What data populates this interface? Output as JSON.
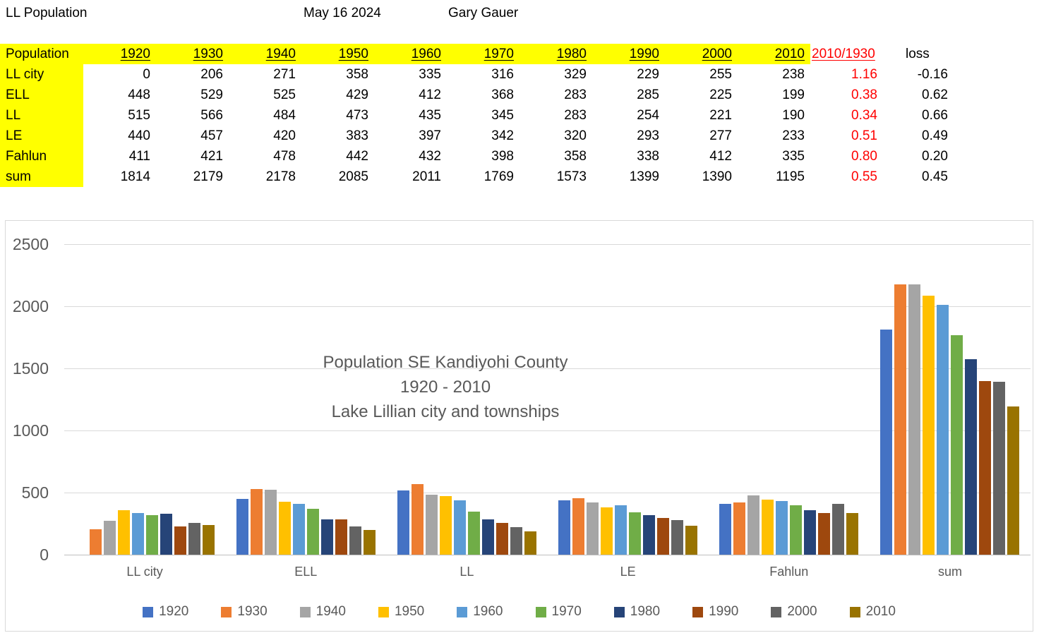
{
  "header": {
    "title": "LL Population",
    "date": "May 16 2024",
    "author": "Gary Gauer"
  },
  "table": {
    "corner_label": "Population",
    "year_headers": [
      "1920",
      "1930",
      "1940",
      "1950",
      "1960",
      "1970",
      "1980",
      "1990",
      "2000",
      "2010"
    ],
    "ratio_header": "2010/1930",
    "loss_header": "loss",
    "rows": [
      {
        "label": "LL city",
        "values": [
          0,
          206,
          271,
          358,
          335,
          316,
          329,
          229,
          255,
          238
        ],
        "ratio": "1.16",
        "loss": "-0.16"
      },
      {
        "label": "ELL",
        "values": [
          448,
          529,
          525,
          429,
          412,
          368,
          283,
          285,
          225,
          199
        ],
        "ratio": "0.38",
        "loss": "0.62"
      },
      {
        "label": "LL",
        "values": [
          515,
          566,
          484,
          473,
          435,
          345,
          283,
          254,
          221,
          190
        ],
        "ratio": "0.34",
        "loss": "0.66"
      },
      {
        "label": "LE",
        "values": [
          440,
          457,
          420,
          383,
          397,
          342,
          320,
          293,
          277,
          233
        ],
        "ratio": "0.51",
        "loss": "0.49"
      },
      {
        "label": "Fahlun",
        "values": [
          411,
          421,
          478,
          442,
          432,
          398,
          358,
          338,
          412,
          335
        ],
        "ratio": "0.80",
        "loss": "0.20"
      },
      {
        "label": "sum",
        "values": [
          1814,
          2179,
          2178,
          2085,
          2011,
          1769,
          1573,
          1399,
          1390,
          1195
        ],
        "ratio": "0.55",
        "loss": "0.45"
      }
    ],
    "colors": {
      "highlight": "#FFFF00",
      "ratio_text": "#FF0000"
    }
  },
  "chart_data": {
    "type": "bar",
    "title_lines": [
      "Population SE Kandiyohi County",
      "1920 - 2010",
      "Lake Lillian city and townships"
    ],
    "categories": [
      "LL city",
      "ELL",
      "LL",
      "LE",
      "Fahlun",
      "sum"
    ],
    "series": [
      {
        "name": "1920",
        "color": "#4472C4",
        "values": [
          0,
          448,
          515,
          440,
          411,
          1814
        ]
      },
      {
        "name": "1930",
        "color": "#ED7D31",
        "values": [
          206,
          529,
          566,
          457,
          421,
          2179
        ]
      },
      {
        "name": "1940",
        "color": "#A5A5A5",
        "values": [
          271,
          525,
          484,
          420,
          478,
          2178
        ]
      },
      {
        "name": "1950",
        "color": "#FFC000",
        "values": [
          358,
          429,
          473,
          383,
          442,
          2085
        ]
      },
      {
        "name": "1960",
        "color": "#5B9BD5",
        "values": [
          335,
          412,
          435,
          397,
          432,
          2011
        ]
      },
      {
        "name": "1970",
        "color": "#70AD47",
        "values": [
          316,
          368,
          345,
          342,
          398,
          1769
        ]
      },
      {
        "name": "1980",
        "color": "#264478",
        "values": [
          329,
          283,
          283,
          320,
          358,
          1573
        ]
      },
      {
        "name": "1990",
        "color": "#9E480E",
        "values": [
          229,
          285,
          254,
          293,
          338,
          1399
        ]
      },
      {
        "name": "2000",
        "color": "#636363",
        "values": [
          255,
          225,
          221,
          277,
          412,
          1390
        ]
      },
      {
        "name": "2010",
        "color": "#997300",
        "values": [
          238,
          199,
          190,
          233,
          335,
          1195
        ]
      }
    ],
    "xlabel": "",
    "ylabel": "",
    "y_ticks": [
      0,
      500,
      1000,
      1500,
      2000,
      2500
    ],
    "ylim": [
      0,
      2500
    ],
    "grid": true,
    "legend_position": "bottom"
  }
}
